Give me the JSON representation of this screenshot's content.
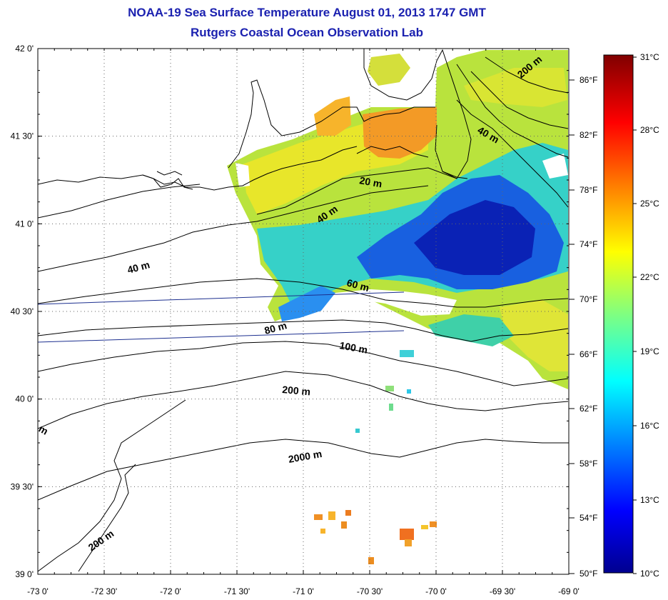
{
  "title": "NOAA-19 Sea Surface Temperature August 01, 2013 1747 GMT",
  "subtitle": "Rutgers Coastal Ocean Observation Lab",
  "map": {
    "lat_ticks": [
      "42 0'",
      "41 30'",
      "41 0'",
      "40 30'",
      "40 0'",
      "39 30'",
      "39 0'"
    ],
    "lon_ticks": [
      "-73 0'",
      "-72 30'",
      "-72 0'",
      "-71 30'",
      "-71 0'",
      "-70 30'",
      "-70 0'",
      "-69 30'",
      "-69 0'"
    ],
    "f_ticks": [
      "86°F",
      "82°F",
      "78°F",
      "74°F",
      "70°F",
      "66°F",
      "62°F",
      "58°F",
      "54°F",
      "50°F"
    ],
    "contour_labels": [
      "200 m",
      "40 m",
      "20 m",
      "40 m",
      "40 m",
      "60 m",
      "80 m",
      "100 m",
      "200 m",
      "2000 m",
      "200 m",
      "m"
    ],
    "lat_range": [
      39.0,
      42.0
    ],
    "lon_range": [
      -73.0,
      -69.0
    ],
    "grid": true
  },
  "colorbar": {
    "labels": [
      "31°C",
      "28°C",
      "25°C",
      "22°C",
      "19°C",
      "16°C",
      "13°C",
      "10°C"
    ],
    "range_c": [
      10,
      31
    ],
    "colormap": "jet"
  },
  "colors": {
    "title": "#1b21b0",
    "track": "#1c2f8f"
  }
}
